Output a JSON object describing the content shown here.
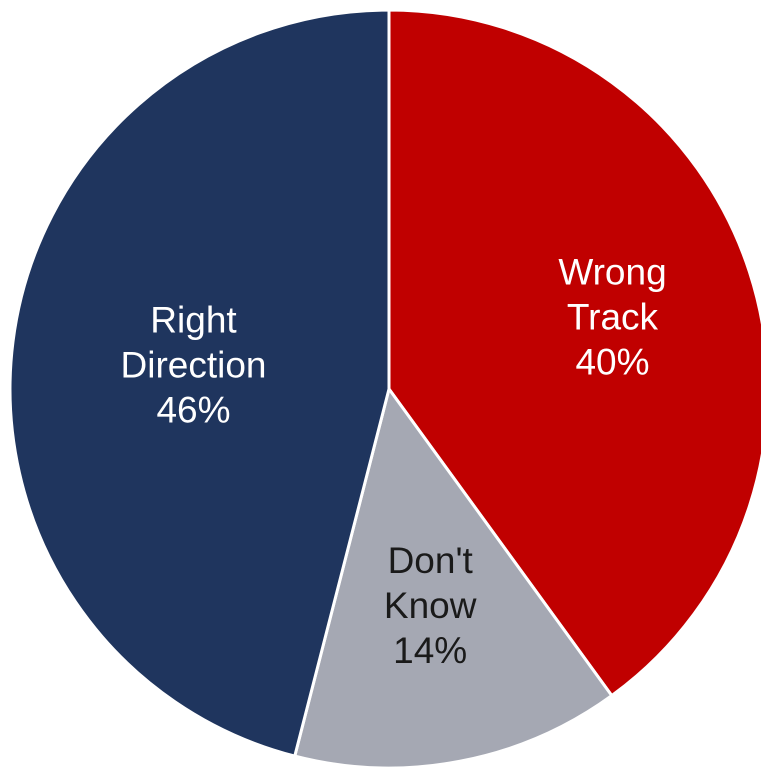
{
  "chart_data": {
    "type": "pie",
    "title": "",
    "legend": "none",
    "start": "12 o'clock",
    "direction": "clockwise",
    "slices": [
      {
        "label": [
          "Wrong",
          "Track",
          "40%"
        ],
        "value": 40,
        "color": "#C00000",
        "text_color": "#FFFFFF"
      },
      {
        "label": [
          "Don't",
          "Know",
          "14%"
        ],
        "value": 14,
        "color": "#A5A8B3",
        "text_color": "#1A1A1A"
      },
      {
        "label": [
          "Right",
          "Direction",
          "46%"
        ],
        "value": 46,
        "color": "#1F355E",
        "text_color": "#FFFFFF"
      }
    ]
  }
}
